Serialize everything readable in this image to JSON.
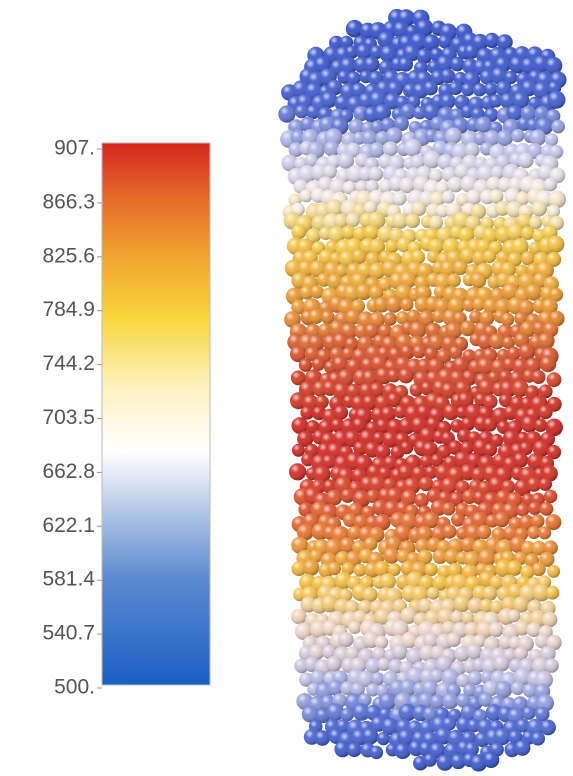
{
  "colorbar": {
    "ticks": [
      {
        "value": 907,
        "label": "907."
      },
      866.3,
      825.6,
      784.9,
      744.2,
      703.5,
      662.8,
      622.1,
      581.4,
      540.7,
      {
        "value": 500,
        "label": "500."
      }
    ]
  }
}
